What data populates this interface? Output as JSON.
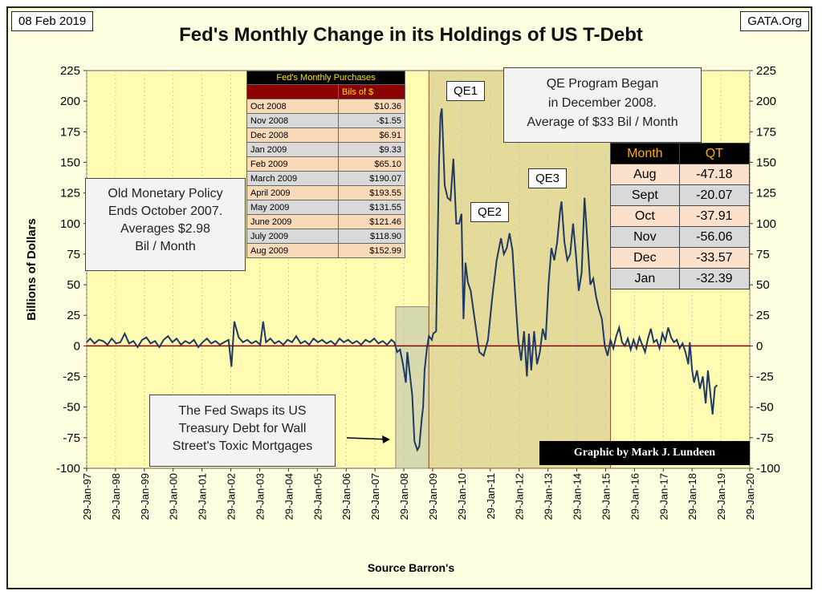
{
  "date_tag": "08 Feb 2019",
  "site_tag": "GATA.Org",
  "chart_data": {
    "type": "line",
    "title": "Fed's Monthly Change in its Holdings of US T-Debt",
    "xlabel": "Source Barron's",
    "ylabel": "Billions  of Dollars",
    "ylim": [
      -100,
      225
    ],
    "yticks": [
      225,
      200,
      175,
      150,
      125,
      100,
      75,
      50,
      25,
      0,
      -25,
      -50,
      -75,
      -100
    ],
    "xticks": [
      "29-Jan-97",
      "29-Jan-98",
      "29-Jan-99",
      "29-Jan-00",
      "29-Jan-01",
      "29-Jan-02",
      "29-Jan-03",
      "29-Jan-04",
      "29-Jan-05",
      "29-Jan-06",
      "29-Jan-07",
      "29-Jan-08",
      "29-Jan-09",
      "29-Jan-10",
      "29-Jan-11",
      "29-Jan-12",
      "29-Jan-13",
      "29-Jan-14",
      "29-Jan-15",
      "29-Jan-16",
      "29-Jan-17",
      "29-Jan-18",
      "29-Jan-19",
      "29-Jan-20"
    ],
    "series": [
      {
        "points": [
          [
            1997.08,
            3
          ],
          [
            1997.2,
            6
          ],
          [
            1997.35,
            2
          ],
          [
            1997.5,
            5
          ],
          [
            1997.65,
            4
          ],
          [
            1997.8,
            1
          ],
          [
            1997.95,
            6
          ],
          [
            1998.1,
            2
          ],
          [
            1998.25,
            3
          ],
          [
            1998.4,
            10
          ],
          [
            1998.55,
            2
          ],
          [
            1998.7,
            4
          ],
          [
            1998.85,
            -1
          ],
          [
            1999.0,
            5
          ],
          [
            1999.15,
            7
          ],
          [
            1999.3,
            2
          ],
          [
            1999.45,
            4
          ],
          [
            1999.6,
            -1
          ],
          [
            1999.75,
            5
          ],
          [
            1999.9,
            8
          ],
          [
            2000.05,
            3
          ],
          [
            2000.2,
            6
          ],
          [
            2000.35,
            1
          ],
          [
            2000.5,
            4
          ],
          [
            2000.65,
            2
          ],
          [
            2000.8,
            5
          ],
          [
            2000.95,
            -1
          ],
          [
            2001.1,
            3
          ],
          [
            2001.25,
            6
          ],
          [
            2001.4,
            2
          ],
          [
            2001.55,
            4
          ],
          [
            2001.7,
            1
          ],
          [
            2001.85,
            3
          ],
          [
            2002.0,
            5
          ],
          [
            2002.1,
            -17
          ],
          [
            2002.2,
            20
          ],
          [
            2002.35,
            7
          ],
          [
            2002.5,
            3
          ],
          [
            2002.65,
            5
          ],
          [
            2002.8,
            2
          ],
          [
            2002.95,
            4
          ],
          [
            2003.1,
            1
          ],
          [
            2003.2,
            20
          ],
          [
            2003.3,
            3
          ],
          [
            2003.45,
            6
          ],
          [
            2003.6,
            2
          ],
          [
            2003.75,
            4
          ],
          [
            2003.9,
            1
          ],
          [
            2004.05,
            5
          ],
          [
            2004.2,
            3
          ],
          [
            2004.35,
            8
          ],
          [
            2004.5,
            2
          ],
          [
            2004.65,
            4
          ],
          [
            2004.8,
            1
          ],
          [
            2004.95,
            6
          ],
          [
            2005.1,
            3
          ],
          [
            2005.25,
            5
          ],
          [
            2005.4,
            2
          ],
          [
            2005.55,
            4
          ],
          [
            2005.7,
            1
          ],
          [
            2005.85,
            6
          ],
          [
            2006.0,
            3
          ],
          [
            2006.15,
            5
          ],
          [
            2006.3,
            2
          ],
          [
            2006.45,
            4
          ],
          [
            2006.6,
            1
          ],
          [
            2006.75,
            5
          ],
          [
            2006.9,
            3
          ],
          [
            2007.05,
            6
          ],
          [
            2007.2,
            2
          ],
          [
            2007.35,
            4
          ],
          [
            2007.5,
            1
          ],
          [
            2007.65,
            5
          ],
          [
            2007.75,
            3
          ],
          [
            2007.85,
            -5
          ],
          [
            2007.95,
            -3
          ],
          [
            2008.05,
            -15
          ],
          [
            2008.15,
            -30
          ],
          [
            2008.2,
            -5
          ],
          [
            2008.3,
            -25
          ],
          [
            2008.37,
            -40
          ],
          [
            2008.45,
            -78
          ],
          [
            2008.55,
            -85
          ],
          [
            2008.62,
            -82
          ],
          [
            2008.7,
            -60
          ],
          [
            2008.75,
            -50
          ],
          [
            2008.8,
            -20
          ],
          [
            2008.88,
            -2
          ],
          [
            2008.95,
            8
          ],
          [
            2009.05,
            5
          ],
          [
            2009.1,
            10
          ],
          [
            2009.2,
            12
          ],
          [
            2009.3,
            150
          ],
          [
            2009.35,
            188
          ],
          [
            2009.4,
            194
          ],
          [
            2009.5,
            131
          ],
          [
            2009.6,
            121
          ],
          [
            2009.7,
            119
          ],
          [
            2009.8,
            153
          ],
          [
            2009.9,
            100
          ],
          [
            2010.0,
            100
          ],
          [
            2010.08,
            108
          ],
          [
            2010.15,
            22
          ],
          [
            2010.22,
            68
          ],
          [
            2010.3,
            52
          ],
          [
            2010.4,
            45
          ],
          [
            2010.55,
            20
          ],
          [
            2010.7,
            -5
          ],
          [
            2010.85,
            -8
          ],
          [
            2011.0,
            5
          ],
          [
            2011.15,
            40
          ],
          [
            2011.3,
            70
          ],
          [
            2011.45,
            88
          ],
          [
            2011.55,
            75
          ],
          [
            2011.65,
            80
          ],
          [
            2011.75,
            92
          ],
          [
            2011.85,
            78
          ],
          [
            2011.95,
            40
          ],
          [
            2012.05,
            5
          ],
          [
            2012.15,
            -12
          ],
          [
            2012.25,
            12
          ],
          [
            2012.35,
            -25
          ],
          [
            2012.42,
            10
          ],
          [
            2012.5,
            -20
          ],
          [
            2012.6,
            12
          ],
          [
            2012.7,
            -15
          ],
          [
            2012.8,
            -5
          ],
          [
            2012.9,
            14
          ],
          [
            2013.0,
            5
          ],
          [
            2013.1,
            50
          ],
          [
            2013.2,
            80
          ],
          [
            2013.3,
            70
          ],
          [
            2013.4,
            85
          ],
          [
            2013.5,
            110
          ],
          [
            2013.55,
            118
          ],
          [
            2013.65,
            85
          ],
          [
            2013.75,
            70
          ],
          [
            2013.85,
            75
          ],
          [
            2013.95,
            100
          ],
          [
            2014.05,
            75
          ],
          [
            2014.15,
            45
          ],
          [
            2014.25,
            60
          ],
          [
            2014.35,
            121
          ],
          [
            2014.45,
            85
          ],
          [
            2014.55,
            50
          ],
          [
            2014.65,
            55
          ],
          [
            2014.75,
            40
          ],
          [
            2014.85,
            30
          ],
          [
            2014.95,
            22
          ],
          [
            2015.05,
            0
          ],
          [
            2015.15,
            -8
          ],
          [
            2015.25,
            5
          ],
          [
            2015.35,
            -2
          ],
          [
            2015.45,
            8
          ],
          [
            2015.55,
            15
          ],
          [
            2015.65,
            3
          ],
          [
            2015.75,
            0
          ],
          [
            2015.85,
            6
          ],
          [
            2015.95,
            -3
          ],
          [
            2016.05,
            5
          ],
          [
            2016.15,
            -2
          ],
          [
            2016.25,
            7
          ],
          [
            2016.35,
            1
          ],
          [
            2016.45,
            -5
          ],
          [
            2016.55,
            6
          ],
          [
            2016.65,
            14
          ],
          [
            2016.75,
            3
          ],
          [
            2016.85,
            5
          ],
          [
            2016.95,
            -2
          ],
          [
            2017.05,
            10
          ],
          [
            2017.15,
            4
          ],
          [
            2017.25,
            15
          ],
          [
            2017.35,
            7
          ],
          [
            2017.45,
            3
          ],
          [
            2017.55,
            5
          ],
          [
            2017.65,
            -2
          ],
          [
            2017.75,
            2
          ],
          [
            2017.85,
            -5
          ],
          [
            2017.95,
            -15
          ],
          [
            2018.0,
            3
          ],
          [
            2018.08,
            -20
          ],
          [
            2018.15,
            -30
          ],
          [
            2018.25,
            -20
          ],
          [
            2018.35,
            -35
          ],
          [
            2018.45,
            -25
          ],
          [
            2018.55,
            -47
          ],
          [
            2018.63,
            -20
          ],
          [
            2018.71,
            -38
          ],
          [
            2018.79,
            -56
          ],
          [
            2018.87,
            -34
          ],
          [
            2018.95,
            -32
          ]
        ]
      }
    ],
    "markers": {
      "cutoff_value_line": 0
    }
  },
  "purchases_table": {
    "title": "Fed's Monthly Purchases",
    "header_value": "Bils of $",
    "rows": [
      {
        "month": "Oct 2008",
        "value": "$10.36"
      },
      {
        "month": "Nov 2008",
        "value": "-$1.55"
      },
      {
        "month": "Dec 2008",
        "value": "$6.91"
      },
      {
        "month": "Jan 2009",
        "value": "$9.33"
      },
      {
        "month": "Feb 2009",
        "value": "$65.10"
      },
      {
        "month": "March 2009",
        "value": "$190.07"
      },
      {
        "month": "April 2009",
        "value": "$193.55"
      },
      {
        "month": "May 2009",
        "value": "$131.55"
      },
      {
        "month": "June 2009",
        "value": "$121.46"
      },
      {
        "month": "July 2009",
        "value": "$118.90"
      },
      {
        "month": "Aug 2009",
        "value": "$152.99"
      }
    ]
  },
  "qt_table": {
    "col_month": "Month",
    "col_qt": "QT",
    "rows": [
      {
        "month": "Aug",
        "value": "-47.18"
      },
      {
        "month": "Sept",
        "value": "-20.07"
      },
      {
        "month": "Oct",
        "value": "-37.91"
      },
      {
        "month": "Nov",
        "value": "-56.06"
      },
      {
        "month": "Dec",
        "value": "-33.57"
      },
      {
        "month": "Jan",
        "value": "-32.39"
      }
    ]
  },
  "notes": {
    "old_policy": [
      "Old Monetary Policy",
      "Ends October 2007.",
      "Averages $2.98",
      "Bil / Month"
    ],
    "qe_program": [
      "QE Program Began",
      "in December 2008.",
      "Average of $33 Bil / Month"
    ],
    "swap": [
      "The Fed Swaps its US",
      "Treasury Debt for Wall",
      "Street's Toxic Mortgages"
    ]
  },
  "qe_labels": {
    "qe1": "QE1",
    "qe2": "QE2",
    "qe3": "QE3"
  },
  "credit": "Graphic by Mark J. Lundeen",
  "colors": {
    "line": "#1f3864",
    "zero_line": "#8b0000",
    "plot_bg": "#fffbb0",
    "qe_shade": "#d8cc90"
  }
}
